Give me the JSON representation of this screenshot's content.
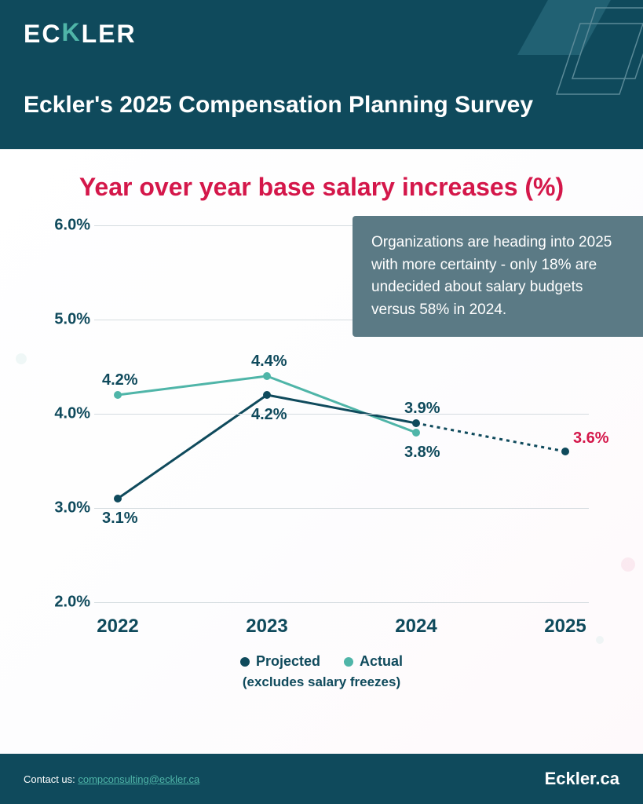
{
  "logo": {
    "text_before": "EC",
    "accent": "K",
    "text_after": "LER"
  },
  "header": {
    "title": "Eckler's 2025 Compensation Planning Survey"
  },
  "chart": {
    "title": "Year over year base salary increases (%)",
    "type": "line",
    "callout": "Organizations are heading into 2025 with more certainty - only 18% are undecided about salary budgets versus 58% in 2024.",
    "years": [
      "2022",
      "2023",
      "2024",
      "2025"
    ],
    "yticks": [
      "2.0%",
      "3.0%",
      "4.0%",
      "5.0%",
      "6.0%"
    ],
    "ylim_min": 2.0,
    "ylim_max": 6.0,
    "series": {
      "projected": {
        "label": "Projected",
        "color": "#0f4a5c",
        "values": [
          3.1,
          4.2,
          3.9,
          3.6
        ],
        "value_labels": [
          "3.1%",
          "4.2%",
          "3.9%",
          "3.6%"
        ],
        "dotted_from_index": 2
      },
      "actual": {
        "label": "Actual",
        "color": "#4fb5a8",
        "values": [
          4.2,
          4.4,
          3.8
        ],
        "value_labels": [
          "4.2%",
          "4.4%",
          "3.8%"
        ]
      }
    },
    "legend_note": "(excludes salary freezes)",
    "grid_color": "#d5dce0",
    "background_color": "#ffffff",
    "title_color": "#d4174a",
    "axis_text_color": "#0f4a5c",
    "final_label_color": "#d4174a",
    "line_width": 3,
    "marker_radius": 5,
    "title_fontsize": 32,
    "axis_fontsize": 20,
    "xlabel_fontsize": 24
  },
  "footer": {
    "contact_label": "Contact us: ",
    "contact_email": "compconsulting@eckler.ca",
    "site": "Eckler.ca"
  }
}
